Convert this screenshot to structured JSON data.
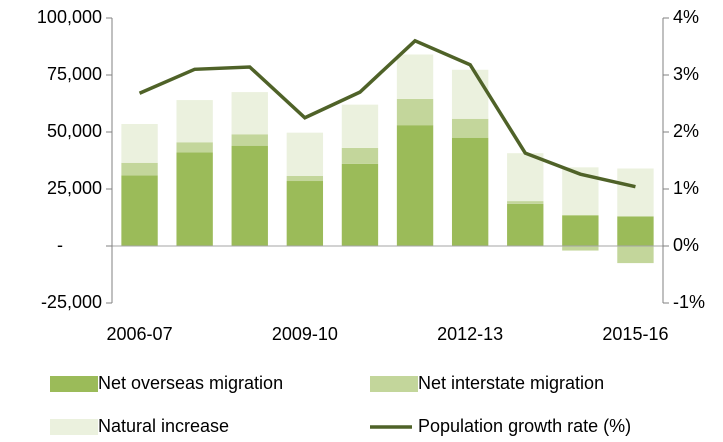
{
  "chart_data": {
    "type": "bar",
    "categories": [
      "2006-07",
      null,
      null,
      "2009-10",
      null,
      null,
      "2012-13",
      null,
      null,
      "2015-16"
    ],
    "series": [
      {
        "name": "Net overseas migration",
        "color": "#9bbb59",
        "values": [
          31000,
          41000,
          44000,
          28500,
          36000,
          53000,
          47500,
          18500,
          13500,
          13000
        ]
      },
      {
        "name": "Net interstate migration",
        "color": "#c3d69b",
        "values": [
          5500,
          4500,
          5000,
          2200,
          7000,
          11500,
          8300,
          1200,
          -2000,
          -7500
        ]
      },
      {
        "name": "Natural increase",
        "color": "#ebf1de",
        "values": [
          17000,
          18500,
          18500,
          19000,
          19000,
          19500,
          21500,
          21000,
          21000,
          21000
        ]
      },
      {
        "name": "Population growth rate (%)",
        "color": "#4f6228",
        "type": "line",
        "axis": "y2",
        "values": [
          2.68,
          3.1,
          3.14,
          2.25,
          2.7,
          3.6,
          3.18,
          1.63,
          1.26,
          1.04
        ]
      }
    ],
    "ylim": [
      -25000,
      100000
    ],
    "yticks": [
      {
        "value": -25000,
        "label": "-25,000"
      },
      {
        "value": 0,
        "label": "-"
      },
      {
        "value": 25000,
        "label": "25,000"
      },
      {
        "value": 50000,
        "label": "50,000"
      },
      {
        "value": 75000,
        "label": "75,000"
      },
      {
        "value": 100000,
        "label": "100,000"
      }
    ],
    "y2lim": [
      -1,
      4
    ],
    "y2ticks": [
      {
        "value": -1,
        "label": "-1%"
      },
      {
        "value": 0,
        "label": "0%"
      },
      {
        "value": 1,
        "label": "1%"
      },
      {
        "value": 2,
        "label": "2%"
      },
      {
        "value": 3,
        "label": "3%"
      },
      {
        "value": 4,
        "label": "4%"
      }
    ],
    "grid": false,
    "legend": "bottom"
  }
}
